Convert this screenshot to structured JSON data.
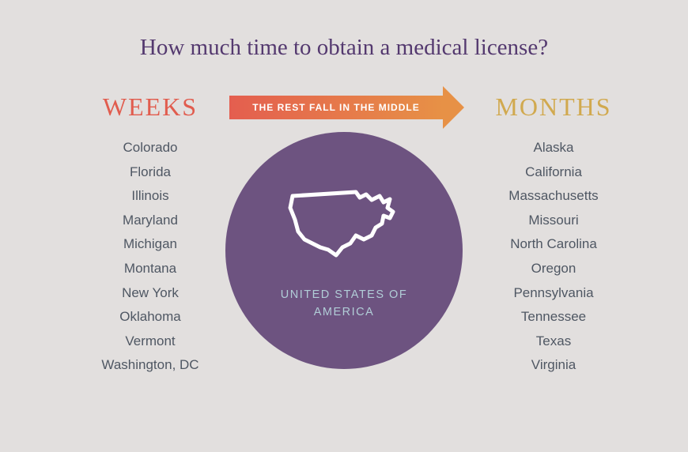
{
  "title": "How much time to obtain a medical license?",
  "left": {
    "header": "WEEKS",
    "header_color": "#e15c4e",
    "states": [
      "Colorado",
      "Florida",
      "Illinois",
      "Maryland",
      "Michigan",
      "Montana",
      "New York",
      "Oklahoma",
      "Vermont",
      "Washington, DC"
    ]
  },
  "right": {
    "header": "MONTHS",
    "header_color": "#d1a94f",
    "states": [
      "Alaska",
      "California",
      "Massachusetts",
      "Missouri",
      "North Carolina",
      "Oregon",
      "Pennsylvania",
      "Tennessee",
      "Texas",
      "Virginia"
    ]
  },
  "arrow": {
    "text": "THE REST FALL IN THE MIDDLE",
    "gradient_start": "#e45e4f",
    "gradient_end": "#e79146"
  },
  "circle": {
    "bg_color": "#6d5380",
    "label": "UNITED STATES OF AMERICA",
    "label_color": "#b1cdd7",
    "outline_color": "#ffffff"
  },
  "colors": {
    "page_bg": "#e2dfde",
    "title": "#54396f",
    "state_text": "#4f5763"
  }
}
